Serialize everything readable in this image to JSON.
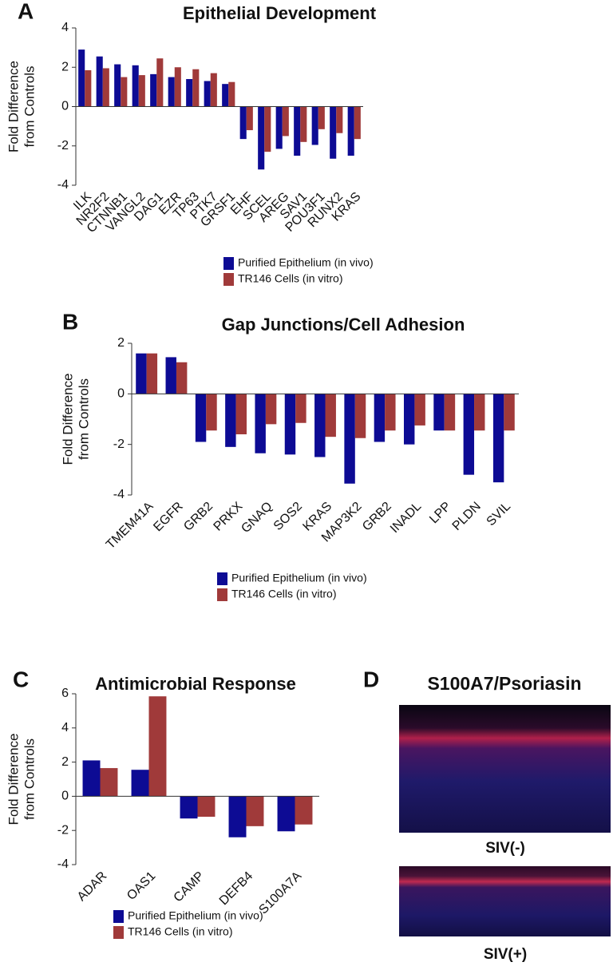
{
  "chart_data": [
    {
      "type": "bar",
      "panel": "A",
      "title": "Epithelial Development",
      "ylabel": [
        "Fold Difference",
        "from Controls"
      ],
      "categories": [
        "ILK",
        "NR2F2",
        "CTNNB1",
        "VANGL2",
        "DAG1",
        "EZR",
        "TP63",
        "PTK7",
        "GRSF1",
        "EHF",
        "SCEL",
        "AREG",
        "SAV1",
        "POU3F1",
        "RUNX2",
        "KRAS"
      ],
      "series": [
        {
          "name": "Purified Epithelium (in vivo)",
          "color": "#0d0b94",
          "values": [
            2.9,
            2.55,
            2.15,
            2.1,
            1.65,
            1.5,
            1.4,
            1.3,
            1.15,
            -1.65,
            -3.2,
            -2.15,
            -2.5,
            -1.95,
            -2.65,
            -2.5
          ]
        },
        {
          "name": "TR146 Cells (in vitro)",
          "color": "#a03a3a",
          "values": [
            1.85,
            1.95,
            1.5,
            1.6,
            2.45,
            2.0,
            1.9,
            1.7,
            1.25,
            -1.2,
            -2.3,
            -1.5,
            -1.8,
            -1.15,
            -1.35,
            -1.65
          ]
        }
      ],
      "ylim": [
        -4,
        4
      ],
      "yticks": [
        -4,
        -2,
        0,
        2,
        4
      ]
    },
    {
      "type": "bar",
      "panel": "B",
      "title": "Gap Junctions/Cell Adhesion",
      "ylabel": [
        "Fold Difference",
        "from Controls"
      ],
      "categories": [
        "TMEM41A",
        "EGFR",
        "GRB2",
        "PRKX",
        "GNAQ",
        "SOS2",
        "KRAS",
        "MAP3K2",
        "GRB2",
        "INADL",
        "LPP",
        "PLDN",
        "SVIL"
      ],
      "series": [
        {
          "name": "Purified Epithelium (in vivo)",
          "color": "#0d0b94",
          "values": [
            1.6,
            1.45,
            -1.9,
            -2.1,
            -2.35,
            -2.4,
            -2.5,
            -3.55,
            -1.9,
            -2.0,
            -1.45,
            -3.2,
            -3.5
          ]
        },
        {
          "name": "TR146 Cells (in vitro)",
          "color": "#a03a3a",
          "values": [
            1.6,
            1.25,
            -1.45,
            -1.6,
            -1.2,
            -1.15,
            -1.7,
            -1.75,
            -1.45,
            -1.25,
            -1.45,
            -1.45,
            -1.45
          ]
        }
      ],
      "ylim": [
        -4,
        2
      ],
      "yticks": [
        -4,
        -2,
        0,
        2
      ]
    },
    {
      "type": "bar",
      "panel": "C",
      "title": "Antimicrobial Response",
      "ylabel": [
        "Fold Difference",
        "from Controls"
      ],
      "categories": [
        "ADAR",
        "OAS1",
        "CAMP",
        "DEFB4",
        "S100A7A"
      ],
      "series": [
        {
          "name": "Purified Epithelium (in vivo)",
          "color": "#0d0b94",
          "values": [
            2.1,
            1.55,
            -1.3,
            -2.4,
            -2.05
          ]
        },
        {
          "name": "TR146 Cells (in vitro)",
          "color": "#a03a3a",
          "values": [
            1.65,
            5.85,
            -1.2,
            -1.75,
            -1.65
          ]
        }
      ],
      "ylim": [
        -4,
        6
      ],
      "yticks": [
        -4,
        -2,
        0,
        2,
        4,
        6
      ]
    }
  ],
  "image_panel": {
    "label": "D",
    "title": "S100A7/Psoriasin",
    "captions": [
      "SIV(-)",
      "SIV(+)"
    ]
  }
}
